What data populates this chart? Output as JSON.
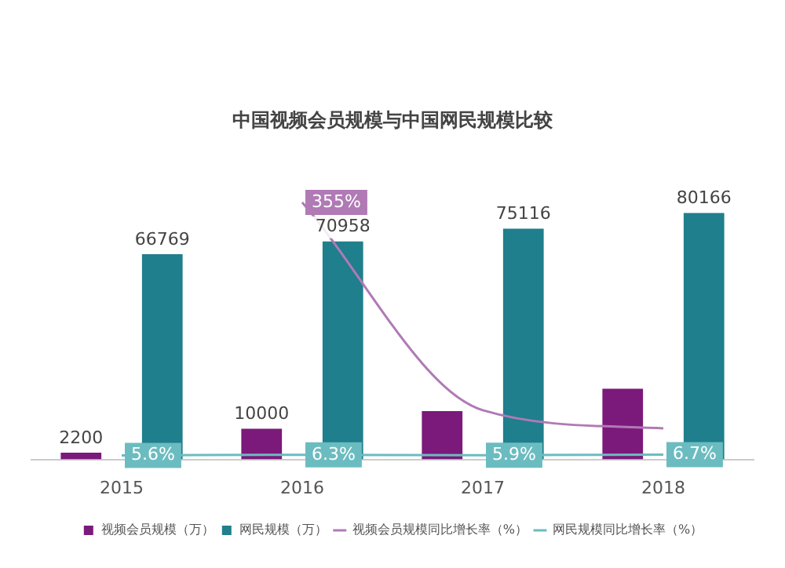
{
  "chart_data": {
    "type": "bar",
    "title": "中国视频会员规模与中国网民规模比较",
    "categories": [
      "2015",
      "2016",
      "2017",
      "2018"
    ],
    "legend": "bottom",
    "grid": false,
    "series": [
      {
        "name": "视频会员规模（万）",
        "color": "#7b1a7a",
        "values": [
          2200,
          10000,
          15700,
          23000
        ],
        "value_labels": [
          "2200",
          "10000",
          null,
          null
        ]
      },
      {
        "name": "网民规模（万）",
        "color": "#1f7f8c",
        "values": [
          66769,
          70958,
          75116,
          80166
        ],
        "value_labels": [
          "66769",
          "70958",
          "75116",
          "80166"
        ]
      },
      {
        "name": "视频会员规模同比增长率（%）",
        "type": "line",
        "axis": "y2",
        "color": "#b07ab5",
        "values": [
          null,
          355,
          68,
          43
        ],
        "value_labels": [
          null,
          "355%",
          null,
          null
        ]
      },
      {
        "name": "网民规模同比增长率（%）",
        "type": "line",
        "axis": "y2",
        "color": "#6bbcc0",
        "values": [
          5.6,
          6.3,
          5.9,
          6.7
        ],
        "value_labels": [
          "5.6%",
          "6.3%",
          "5.9%",
          "6.7%"
        ]
      }
    ]
  }
}
